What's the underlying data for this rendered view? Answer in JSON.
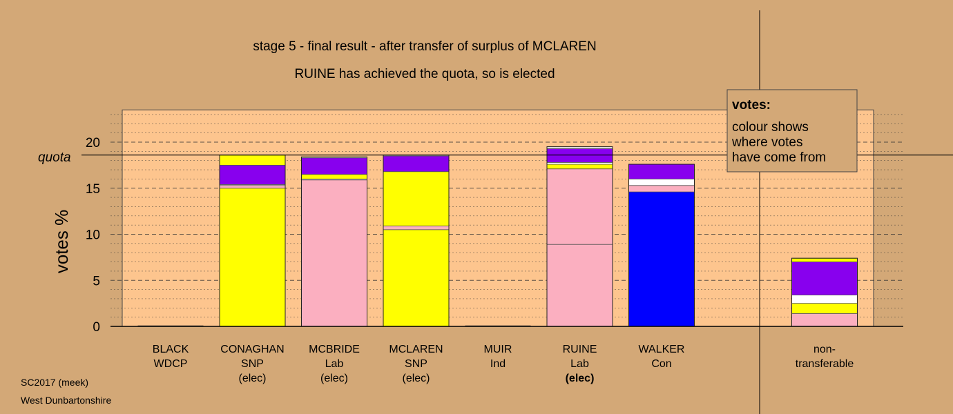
{
  "titles": {
    "line1": "stage 5 - final result - after transfer of surplus of MCLAREN",
    "line2": "RUINE has achieved the quota, so is elected"
  },
  "footer": {
    "line1": "SC2017 (meek)",
    "line2": "West Dunbartonshire"
  },
  "legend": {
    "title": "votes:",
    "lines": [
      "colour shows",
      "where votes",
      "have come from"
    ]
  },
  "colors": {
    "background": "#d3a877",
    "plot_background": "#fdc58e",
    "SNP": "#ffff00",
    "Lab": "#fbafc0",
    "Con": "#0000ff",
    "Ind": "#8800ee",
    "WDCP": "#ffffff"
  },
  "chart_data": {
    "type": "bar",
    "stacked": true,
    "ylabel": "votes %",
    "ylim": [
      0,
      23.5
    ],
    "yticks": [
      0,
      5,
      10,
      15,
      20
    ],
    "quota": {
      "label": "quota",
      "value": 18.6
    },
    "grid": true,
    "legend_position": "top-right",
    "candidates": [
      {
        "name": "BLACK",
        "party": "WDCP",
        "status": "",
        "total": 0,
        "segments": []
      },
      {
        "name": "CONAGHAN",
        "party": "SNP",
        "status": "(elec)",
        "total": 18.6,
        "segments": [
          {
            "from": "SNP",
            "value": 15.0
          },
          {
            "from": "Lab",
            "value": 0.3
          },
          {
            "from": "WDCP",
            "value": 0.1
          },
          {
            "from": "Ind",
            "value": 2.1
          },
          {
            "from": "SNP",
            "value": 1.1
          }
        ]
      },
      {
        "name": "MCBRIDE",
        "party": "Lab",
        "status": "(elec)",
        "total": 18.6,
        "segments": [
          {
            "from": "Lab",
            "value": 15.9
          },
          {
            "from": "WDCP",
            "value": 0.1
          },
          {
            "from": "SNP",
            "value": 0.5
          },
          {
            "from": "Ind",
            "value": 1.8
          },
          {
            "from": "WDCP",
            "value": 0.1
          }
        ]
      },
      {
        "name": "MCLAREN",
        "party": "SNP",
        "status": "(elec)",
        "total": 18.6,
        "segments": [
          {
            "from": "SNP",
            "value": 10.5
          },
          {
            "from": "Lab",
            "value": 0.4
          },
          {
            "from": "SNP",
            "value": 5.9
          },
          {
            "from": "Ind",
            "value": 1.7
          },
          {
            "from": "WDCP",
            "value": 0.1
          }
        ]
      },
      {
        "name": "MUIR",
        "party": "Ind",
        "status": "",
        "total": 0,
        "segments": []
      },
      {
        "name": "RUINE",
        "party": "Lab",
        "status": "(elec)",
        "total": 19.5,
        "segments": [
          {
            "from": "Lab",
            "value": 8.9
          },
          {
            "from": "Lab",
            "value": 8.2
          },
          {
            "from": "SNP",
            "value": 0.5
          },
          {
            "from": "WDCP",
            "value": 0.2
          },
          {
            "from": "Ind",
            "value": 1.5
          },
          {
            "from": "WDCP",
            "value": 0.2
          }
        ]
      },
      {
        "name": "WALKER",
        "party": "Con",
        "status": "",
        "total": 17.6,
        "segments": [
          {
            "from": "Con",
            "value": 14.6
          },
          {
            "from": "Lab",
            "value": 0.7
          },
          {
            "from": "WDCP",
            "value": 0.7
          },
          {
            "from": "Ind",
            "value": 1.6
          }
        ]
      },
      {
        "name": "non-",
        "party": "transferable",
        "status": "",
        "total": 7.4,
        "segments": [
          {
            "from": "Lab",
            "value": 1.4
          },
          {
            "from": "SNP",
            "value": 1.1
          },
          {
            "from": "WDCP",
            "value": 0.9
          },
          {
            "from": "Ind",
            "value": 3.6
          },
          {
            "from": "SNP",
            "value": 0.4
          }
        ]
      }
    ]
  }
}
